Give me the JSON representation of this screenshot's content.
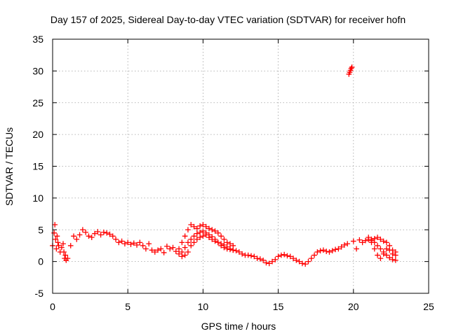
{
  "chart_data": {
    "type": "scatter",
    "title": "Day 157 of 2025, Sidereal Day-to-day VTEC variation (SDTVAR) for receiver hofn",
    "xlabel": "GPS time / hours",
    "ylabel": "SDTVAR / TECUs",
    "xlim": [
      0,
      25
    ],
    "ylim": [
      -5,
      35
    ],
    "xticks": [
      "0",
      "5",
      "10",
      "15",
      "20",
      "25"
    ],
    "yticks": [
      "-5",
      "0",
      "5",
      "10",
      "15",
      "20",
      "25",
      "30",
      "35"
    ],
    "grid": true,
    "marker": "+",
    "series_color": "#ff0000",
    "series": [
      {
        "name": "SDTVAR",
        "x": [
          0.0,
          0.1,
          0.15,
          0.2,
          0.25,
          0.3,
          0.35,
          0.4,
          0.5,
          0.6,
          0.7,
          0.75,
          0.8,
          0.85,
          0.9,
          1.0,
          1.2,
          1.4,
          1.6,
          1.8,
          2.0,
          2.2,
          2.4,
          2.6,
          2.8,
          3.0,
          3.2,
          3.4,
          3.6,
          3.8,
          4.0,
          4.2,
          4.4,
          4.6,
          4.8,
          5.0,
          5.2,
          5.4,
          5.6,
          5.8,
          6.0,
          6.2,
          6.4,
          6.6,
          6.8,
          7.0,
          7.2,
          7.4,
          7.6,
          7.8,
          8.0,
          8.2,
          8.4,
          8.6,
          8.8,
          9.0,
          9.2,
          9.4,
          9.6,
          9.8,
          10.0,
          10.2,
          10.4,
          10.6,
          10.8,
          11.0,
          11.2,
          11.4,
          11.6,
          11.8,
          12.0,
          12.2,
          12.4,
          12.6,
          12.8,
          13.0,
          13.2,
          13.4,
          13.6,
          13.8,
          14.0,
          14.2,
          14.4,
          14.6,
          14.8,
          15.0,
          15.2,
          15.4,
          15.6,
          15.8,
          16.0,
          16.2,
          16.4,
          16.6,
          16.8,
          17.0,
          17.2,
          17.4,
          17.6,
          17.8,
          18.0,
          18.2,
          18.4,
          18.6,
          18.8,
          19.0,
          19.2,
          19.4,
          19.6,
          19.7,
          19.75,
          19.8,
          19.85,
          19.9,
          20.0,
          20.2,
          20.4,
          20.6,
          20.8,
          21.0,
          21.2,
          21.4,
          21.6,
          21.8,
          22.0,
          22.2,
          22.4,
          22.6,
          22.8,
          8.4,
          8.6,
          8.8,
          9.0,
          9.2,
          9.4,
          9.6,
          9.8,
          10.0,
          10.2,
          10.4,
          10.6,
          10.8,
          11.0,
          11.2,
          11.4,
          11.6,
          11.8,
          12.0,
          8.6,
          8.8,
          9.0,
          9.2,
          9.4,
          9.6,
          9.8,
          10.0,
          10.2,
          10.4,
          10.6,
          10.8,
          11.0,
          11.2,
          11.4,
          11.6,
          11.8,
          12.0,
          21.0,
          21.2,
          21.4,
          21.6,
          21.8,
          22.0,
          22.2,
          22.4,
          22.6,
          22.8,
          21.2,
          21.4,
          21.6,
          21.8,
          22.0,
          22.2,
          22.4,
          22.6,
          22.8
        ],
        "y": [
          2.5,
          4.5,
          5.8,
          3.5,
          2.0,
          4.0,
          3.0,
          2.5,
          1.5,
          2.2,
          2.8,
          1.5,
          0.5,
          1.0,
          0.2,
          0.5,
          2.5,
          4.0,
          3.5,
          4.2,
          5.0,
          4.6,
          4.0,
          3.8,
          4.4,
          4.7,
          4.2,
          4.6,
          4.5,
          4.3,
          4.0,
          3.5,
          3.0,
          3.2,
          2.8,
          3.0,
          2.7,
          2.9,
          2.6,
          3.0,
          2.5,
          2.0,
          2.8,
          1.8,
          1.5,
          1.8,
          2.0,
          1.4,
          2.4,
          2.0,
          2.2,
          1.6,
          1.2,
          0.8,
          1.0,
          1.5,
          2.5,
          3.0,
          3.5,
          3.8,
          4.0,
          4.2,
          3.8,
          3.5,
          3.2,
          3.0,
          2.8,
          2.6,
          2.3,
          2.0,
          1.8,
          1.7,
          1.5,
          1.2,
          1.0,
          1.0,
          0.9,
          0.8,
          0.5,
          0.4,
          0.2,
          -0.2,
          -0.3,
          0.0,
          0.3,
          0.8,
          1.0,
          1.1,
          0.9,
          0.8,
          0.5,
          0.2,
          0.0,
          -0.3,
          -0.4,
          0.0,
          0.5,
          1.0,
          1.5,
          1.7,
          1.8,
          1.6,
          1.5,
          1.7,
          1.9,
          2.0,
          2.3,
          2.6,
          2.8,
          29.5,
          29.8,
          30.1,
          30.4,
          30.6,
          3.2,
          2.0,
          3.4,
          3.0,
          3.3,
          3.5,
          3.3,
          3.6,
          3.8,
          3.5,
          3.2,
          3.0,
          2.5,
          1.8,
          1.5,
          2.0,
          3.0,
          4.0,
          5.0,
          5.8,
          5.5,
          5.2,
          5.6,
          5.8,
          5.5,
          5.2,
          5.0,
          4.8,
          4.5,
          4.0,
          3.5,
          3.0,
          2.8,
          2.5,
          1.5,
          2.2,
          3.0,
          3.5,
          4.0,
          4.4,
          4.6,
          4.8,
          4.5,
          4.2,
          3.9,
          3.5,
          3.0,
          2.5,
          2.2,
          2.0,
          1.9,
          1.8,
          3.8,
          3.5,
          3.0,
          2.5,
          2.0,
          1.5,
          1.0,
          0.6,
          0.3,
          0.2,
          3.0,
          2.0,
          1.0,
          0.5,
          1.2,
          2.0,
          1.8,
          1.2,
          1.0
        ]
      }
    ]
  }
}
